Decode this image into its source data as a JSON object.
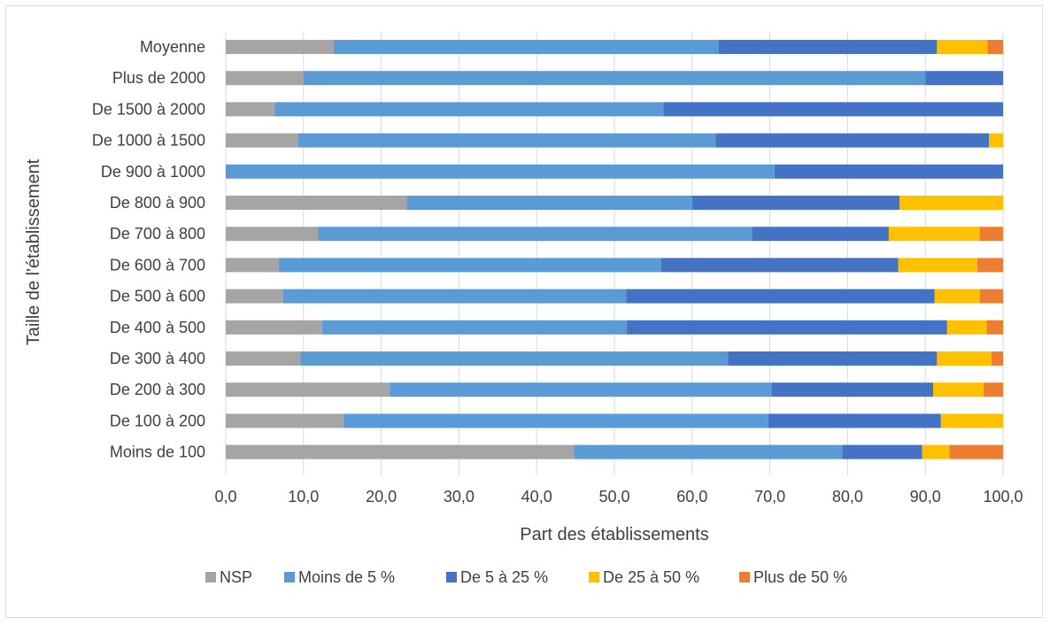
{
  "chart_data": {
    "type": "bar",
    "orientation": "horizontal",
    "stacked": true,
    "title": "",
    "xlabel": "Part des établissements",
    "ylabel": "Taille de l'établissement",
    "xlim": [
      0,
      100
    ],
    "x_ticks": [
      "0,0",
      "10,0",
      "20,0",
      "30,0",
      "40,0",
      "50,0",
      "60,0",
      "70,0",
      "80,0",
      "90,0",
      "100,0"
    ],
    "grid": "vertical",
    "legend_position": "bottom",
    "categories": [
      "Moyenne",
      "Plus de 2000",
      "De 1500 à 2000",
      "De 1000 à 1500",
      "De 900 à 1000",
      "De 800 à 900",
      "De 700 à 800",
      "De 600 à 700",
      "De 500 à 600",
      "De 400 à 500",
      "De 300 à 400",
      "De 200 à 300",
      "De 100 à 200",
      "Moins de 100"
    ],
    "series": [
      {
        "name": "NSP",
        "color": "#a5a5a5",
        "values": [
          13.9,
          10.0,
          6.3,
          9.3,
          0,
          23.3,
          11.9,
          6.8,
          7.4,
          12.4,
          9.6,
          21.1,
          15.2,
          44.8
        ]
      },
      {
        "name": "Moins de 5 %",
        "color": "#5b9bd5",
        "values": [
          49.5,
          80.0,
          50.0,
          53.7,
          70.6,
          36.7,
          55.8,
          49.2,
          44.1,
          39.2,
          55.0,
          49.1,
          54.6,
          34.5
        ]
      },
      {
        "name": "De 5 à 25 %",
        "color": "#4472c4",
        "values": [
          28.1,
          10.0,
          43.7,
          35.2,
          29.4,
          26.7,
          17.6,
          30.5,
          39.7,
          41.2,
          26.9,
          20.8,
          22.2,
          10.3
        ]
      },
      {
        "name": "De 25 à 50 %",
        "color": "#ffc000",
        "values": [
          6.5,
          0,
          0,
          1.8,
          0,
          13.3,
          11.7,
          10.2,
          5.8,
          5.1,
          7.0,
          6.5,
          8.0,
          3.5
        ]
      },
      {
        "name": "Plus de 50 %",
        "color": "#ed7d31",
        "values": [
          2.0,
          0,
          0,
          0,
          0,
          0,
          3.0,
          3.3,
          3.0,
          2.1,
          1.5,
          2.5,
          0,
          6.9
        ]
      }
    ]
  }
}
